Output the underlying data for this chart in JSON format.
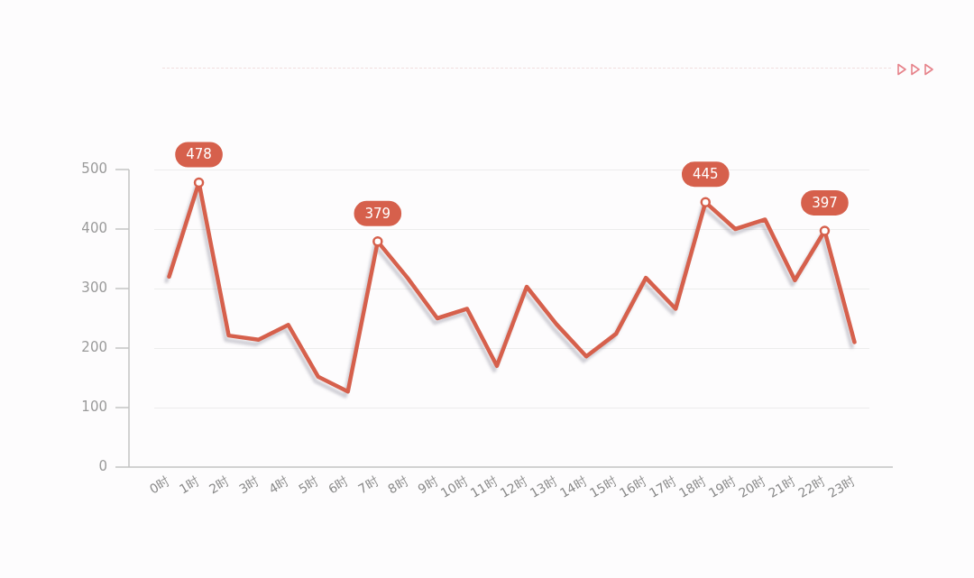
{
  "chart_data": {
    "type": "line",
    "categories": [
      "0时",
      "1时",
      "2时",
      "3时",
      "4时",
      "5时",
      "6时",
      "7时",
      "8时",
      "9时",
      "10时",
      "11时",
      "12时",
      "13时",
      "14时",
      "15时",
      "16时",
      "17时",
      "18时",
      "19时",
      "20时",
      "21时",
      "22时",
      "23时"
    ],
    "series": [
      {
        "color": "#d6604c",
        "values": [
          320,
          478,
          221,
          214,
          239,
          152,
          127,
          379,
          318,
          250,
          266,
          170,
          303,
          240,
          186,
          224,
          318,
          266,
          445,
          400,
          416,
          314,
          397,
          210
        ],
        "value_labels": [
          null,
          "478",
          null,
          null,
          null,
          null,
          null,
          "379",
          null,
          null,
          null,
          null,
          null,
          null,
          null,
          null,
          null,
          null,
          "445",
          null,
          null,
          null,
          "397",
          null
        ]
      }
    ],
    "ylim": [
      0,
      500
    ],
    "yticks": [
      0,
      100,
      200,
      300,
      400,
      500
    ],
    "grid": "y",
    "legend": false,
    "line_style": "solid"
  }
}
